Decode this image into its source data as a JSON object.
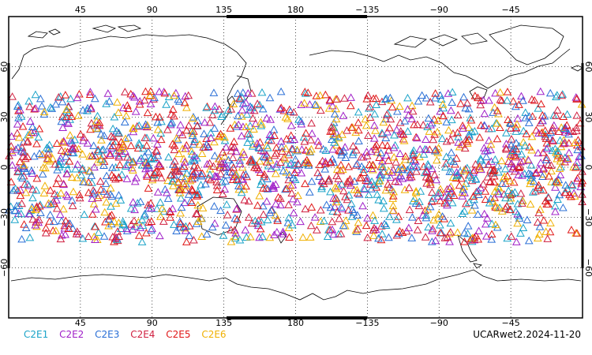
{
  "map": {
    "top_ticks": [
      "45",
      "90",
      "135",
      "180",
      "−135",
      "−90",
      "−45"
    ],
    "bottom_ticks": [
      "45",
      "90",
      "135",
      "180",
      "−135",
      "−90",
      "−45"
    ],
    "left_ticks": [
      "60",
      "30",
      "0",
      "−30",
      "−60"
    ],
    "right_ticks": [
      "60",
      "30",
      "0",
      "−30",
      "−60"
    ],
    "lon_range": [
      0,
      360
    ],
    "lat_range": [
      -90,
      90
    ],
    "grid": true,
    "marker_shape": "triangle-outline",
    "marker_lat_band": [
      -45,
      45
    ]
  },
  "legend": {
    "items": [
      {
        "label": "C2E1",
        "color": "#1aa3c8"
      },
      {
        "label": "C2E2",
        "color": "#a020c8"
      },
      {
        "label": "C2E3",
        "color": "#2a6fd6"
      },
      {
        "label": "C2E4",
        "color": "#d02040"
      },
      {
        "label": "C2E5",
        "color": "#e01818"
      },
      {
        "label": "C2E6",
        "color": "#f0b000"
      }
    ]
  },
  "product_label": "UCARwet2.2024-11-20"
}
